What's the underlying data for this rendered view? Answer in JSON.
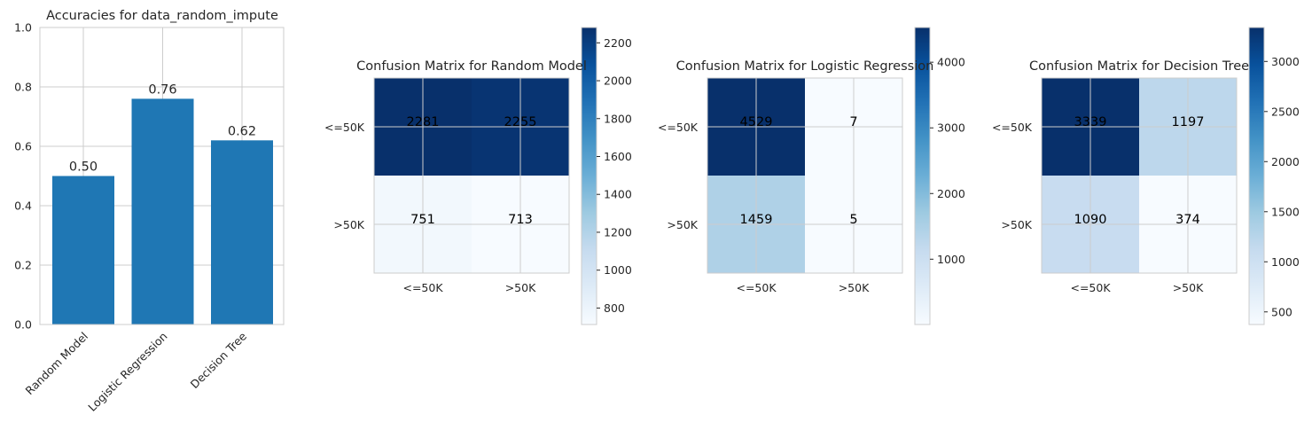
{
  "chart_data": [
    {
      "type": "bar",
      "title": "Accuracies for data_random_impute",
      "categories": [
        "Random Model",
        "Logistic Regression",
        "Decision Tree"
      ],
      "values": [
        0.5,
        0.76,
        0.62
      ],
      "labels": [
        "0.50",
        "0.76",
        "0.62"
      ],
      "ylim": [
        0,
        1.0
      ],
      "yticks": [
        "0.0",
        "0.2",
        "0.4",
        "0.6",
        "0.8",
        "1.0"
      ],
      "bar_color": "#1f77b4",
      "grid": true
    },
    {
      "type": "heatmap",
      "title": "Confusion Matrix for Random Model",
      "rows": [
        "<=50K",
        ">50K"
      ],
      "cols": [
        "<=50K",
        ">50K"
      ],
      "values": [
        [
          2281,
          2255
        ],
        [
          751,
          713
        ]
      ],
      "colorbar": {
        "min": 713,
        "max": 2281,
        "ticks": [
          "800",
          "1000",
          "1200",
          "1400",
          "1600",
          "1800",
          "2000",
          "2200"
        ]
      },
      "cmap": "Blues"
    },
    {
      "type": "heatmap",
      "title": "Confusion Matrix for Logistic Regression",
      "rows": [
        "<=50K",
        ">50K"
      ],
      "cols": [
        "<=50K",
        ">50K"
      ],
      "values": [
        [
          4529,
          7
        ],
        [
          1459,
          5
        ]
      ],
      "colorbar": {
        "min": 5,
        "max": 4529,
        "ticks": [
          "1000",
          "2000",
          "3000",
          "4000"
        ]
      },
      "cmap": "Blues"
    },
    {
      "type": "heatmap",
      "title": "Confusion Matrix for Decision Tree",
      "rows": [
        "<=50K",
        ">50K"
      ],
      "cols": [
        "<=50K",
        ">50K"
      ],
      "values": [
        [
          3339,
          1197
        ],
        [
          1090,
          374
        ]
      ],
      "colorbar": {
        "min": 374,
        "max": 3339,
        "ticks": [
          "500",
          "1000",
          "1500",
          "2000",
          "2500",
          "3000"
        ]
      },
      "cmap": "Blues"
    }
  ]
}
